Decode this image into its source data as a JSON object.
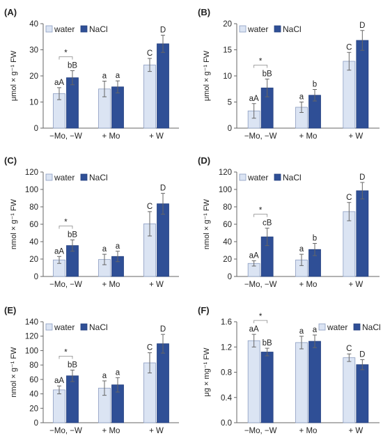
{
  "legend": {
    "water": "water",
    "nacl": "NaCl"
  },
  "colors": {
    "water": "#dbe4f3",
    "water_stroke": "#8a9cc0",
    "nacl": "#2f4f96",
    "nacl_stroke": "#24407f",
    "error_bar": "#666666",
    "axis": "#666666"
  },
  "chart_data": [
    {
      "type": "bar",
      "panel": "(A)",
      "categories": [
        "−Mo, −W",
        "+ Mo",
        "+ W"
      ],
      "ylabel": "μmol × g⁻¹ FW",
      "ylim": [
        0,
        40
      ],
      "yticks": [
        0,
        10,
        20,
        30,
        40
      ],
      "decimals": 0,
      "legend_position": "top",
      "series": [
        {
          "name": "water",
          "values": [
            13.2,
            15.0,
            24.2
          ],
          "errors": [
            2.3,
            3.0,
            2.5
          ],
          "labels": [
            "aA",
            "a",
            "C"
          ]
        },
        {
          "name": "NaCl",
          "values": [
            19.3,
            15.8,
            32.3
          ],
          "errors": [
            2.7,
            2.3,
            3.3
          ],
          "labels": [
            "bB",
            "a",
            "D"
          ]
        }
      ],
      "significance": {
        "category": 0,
        "symbol": "*"
      }
    },
    {
      "type": "bar",
      "panel": "(B)",
      "categories": [
        "−Mo, −W",
        "+ Mo",
        "+ W"
      ],
      "ylabel": "μmol × g⁻¹ FW",
      "ylim": [
        0,
        20
      ],
      "yticks": [
        0,
        5,
        10,
        15,
        20
      ],
      "decimals": 0,
      "legend_position": "top",
      "series": [
        {
          "name": "water",
          "values": [
            3.3,
            4.0,
            12.8
          ],
          "errors": [
            1.4,
            1.0,
            1.7
          ],
          "labels": [
            "aA",
            "a",
            "C"
          ]
        },
        {
          "name": "NaCl",
          "values": [
            7.7,
            6.3,
            16.8
          ],
          "errors": [
            1.7,
            1.1,
            1.9
          ],
          "labels": [
            "bB",
            "b",
            "D"
          ]
        }
      ],
      "significance": {
        "category": 0,
        "symbol": "*"
      }
    },
    {
      "type": "bar",
      "panel": "(C)",
      "categories": [
        "−Mo, −W",
        "+ Mo",
        "+ W"
      ],
      "ylabel": "nmol × g⁻¹ FW",
      "ylim": [
        0,
        120
      ],
      "yticks": [
        0,
        20,
        40,
        60,
        80,
        100,
        120
      ],
      "decimals": 0,
      "legend_position": "top",
      "series": [
        {
          "name": "water",
          "values": [
            19,
            19.5,
            60.5
          ],
          "errors": [
            4,
            6,
            14
          ],
          "labels": [
            "aA",
            "a",
            "C"
          ]
        },
        {
          "name": "NaCl",
          "values": [
            35.5,
            23,
            83.5
          ],
          "errors": [
            6.5,
            6,
            12
          ],
          "labels": [
            "bB",
            "a",
            "D"
          ]
        }
      ],
      "significance": {
        "category": 0,
        "symbol": "*"
      }
    },
    {
      "type": "bar",
      "panel": "(D)",
      "categories": [
        "−Mo, −W",
        "+ Mo",
        "+ W"
      ],
      "ylabel": "nmol × g⁻¹ FW",
      "ylim": [
        0,
        120
      ],
      "yticks": [
        0,
        20,
        40,
        60,
        80,
        100,
        120
      ],
      "decimals": 0,
      "legend_position": "top",
      "series": [
        {
          "name": "water",
          "values": [
            15,
            19,
            74.5
          ],
          "errors": [
            3,
            6.5,
            10.5
          ],
          "labels": [
            "aA",
            "a",
            "C"
          ]
        },
        {
          "name": "NaCl",
          "values": [
            45.5,
            31,
            98.5
          ],
          "errors": [
            10,
            7,
            9.5
          ],
          "labels": [
            "cB",
            "b",
            "D"
          ]
        }
      ],
      "significance": {
        "category": 0,
        "symbol": "*"
      }
    },
    {
      "type": "bar",
      "panel": "(E)",
      "categories": [
        "−Mo, −W",
        "+ Mo",
        "+ W"
      ],
      "ylabel": "nmol × g⁻¹ FW",
      "ylim": [
        0,
        140
      ],
      "yticks": [
        0,
        20,
        40,
        60,
        80,
        100,
        120,
        140
      ],
      "decimals": 0,
      "legend_position": "top",
      "series": [
        {
          "name": "water",
          "values": [
            45.5,
            48,
            83
          ],
          "errors": [
            5.5,
            10,
            14
          ],
          "labels": [
            "aA",
            "a",
            "C"
          ]
        },
        {
          "name": "NaCl",
          "values": [
            65,
            52.5,
            109.5
          ],
          "errors": [
            8,
            10,
            13
          ],
          "labels": [
            "bB",
            "a",
            "D"
          ]
        }
      ],
      "significance": {
        "category": 0,
        "symbol": "*"
      }
    },
    {
      "type": "bar",
      "panel": "(F)",
      "categories": [
        "−Mo, −W",
        "+ Mo",
        "+ W"
      ],
      "ylabel": "μg × mg⁻¹ FW",
      "ylim": [
        0,
        1.6
      ],
      "yticks": [
        0,
        0.4,
        0.8,
        1.2,
        1.6
      ],
      "decimals": 1,
      "legend_position": "top",
      "series": [
        {
          "name": "water",
          "values": [
            1.3,
            1.27,
            1.03
          ],
          "errors": [
            0.1,
            0.1,
            0.06
          ],
          "labels": [
            "aA",
            "a",
            "C"
          ]
        },
        {
          "name": "NaCl",
          "values": [
            1.12,
            1.29,
            0.92
          ],
          "errors": [
            0.06,
            0.1,
            0.08
          ],
          "labels": [
            "bB",
            "a",
            "D"
          ]
        }
      ],
      "significance": {
        "category": 0,
        "symbol": "*"
      }
    }
  ]
}
